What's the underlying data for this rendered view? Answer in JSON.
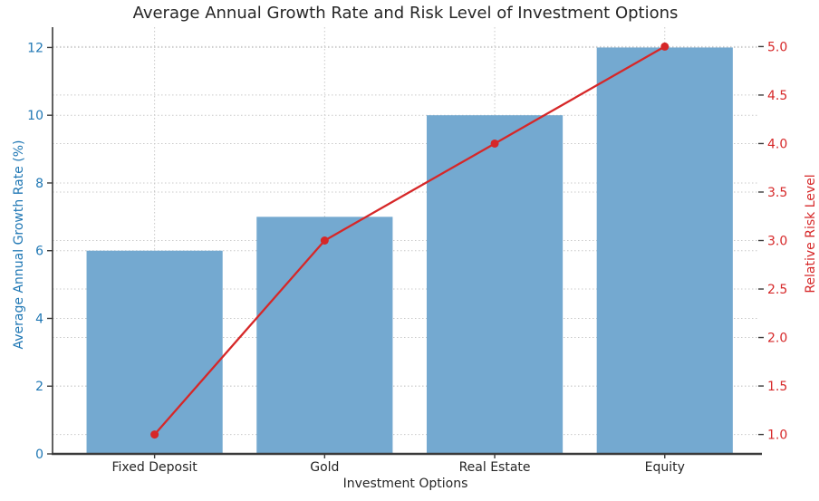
{
  "chart_data": {
    "type": "combo",
    "title": "Average Annual Growth Rate and Risk Level of Investment Options",
    "xlabel": "Investment Options",
    "ylabel_left": "Average Annual Growth Rate (%)",
    "ylabel_right": "Relative Risk Level",
    "categories": [
      "Fixed Deposit",
      "Gold",
      "Real Estate",
      "Equity"
    ],
    "series": [
      {
        "name": "Average Annual Growth Rate (%)",
        "type": "bar",
        "axis": "left",
        "color": "#74a9d0",
        "values": [
          6,
          7,
          10,
          12
        ]
      },
      {
        "name": "Relative Risk Level",
        "type": "line",
        "axis": "right",
        "color": "#d62728",
        "marker": "circle",
        "values": [
          1.0,
          3.0,
          4.0,
          5.0
        ]
      }
    ],
    "left_axis": {
      "min": 0,
      "max": 12.6,
      "ticks": [
        "0",
        "2",
        "4",
        "6",
        "8",
        "10",
        "12"
      ],
      "tick_color": "#1f77b4"
    },
    "right_axis": {
      "min": 0.8,
      "max": 5.2,
      "ticks": [
        "1.0",
        "1.5",
        "2.0",
        "2.5",
        "3.0",
        "3.5",
        "4.0",
        "4.5",
        "5.0"
      ],
      "tick_color": "#d62728"
    },
    "grid": "both-axes dotted horizontal plus vertical at categories",
    "legend": "none",
    "colors": {
      "background": "#ffffff",
      "grid": "#c9c9c9",
      "spine": "#3a3a3a",
      "text": "#262626"
    }
  }
}
